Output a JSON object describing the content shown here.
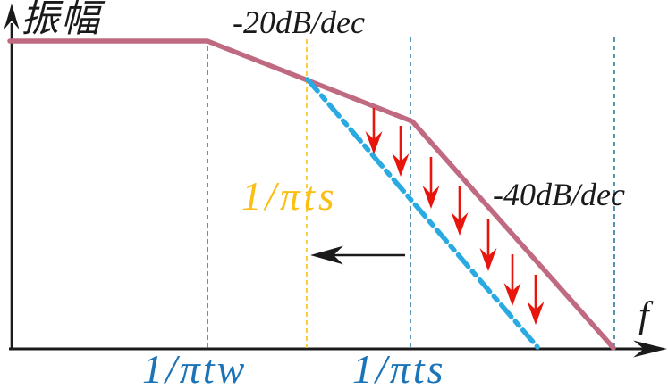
{
  "chart_data": {
    "type": "line",
    "title": "",
    "ylabel": "振幅",
    "xlabel": "f",
    "slope_labels": [
      "-20dB/dec",
      "-40dB/dec"
    ],
    "shifted_pole_label": "1/πts",
    "x_tick_labels": [
      "1/πtw",
      "1/πts"
    ],
    "axis_color": "#1a1a1a",
    "legend": "off",
    "grid": "off",
    "series": [
      {
        "name": "amplitude-asymptote-original",
        "color": "#c06a82",
        "width": 5.5,
        "dash": "",
        "points": [
          [
            11,
            46
          ],
          [
            232,
            46
          ],
          [
            461,
            136
          ],
          [
            686,
            390
          ]
        ]
      },
      {
        "name": "amplitude-asymptote-shifted",
        "color": "#29abe2",
        "width": 5.5,
        "dash": "17 7 6 7",
        "points": [
          [
            344,
            89
          ],
          [
            601,
            389
          ]
        ]
      }
    ],
    "guides": [
      {
        "name": "guide-line-1-pi-tw",
        "x": 232,
        "top": 52,
        "bottom": 390,
        "color": "#2e7ca0"
      },
      {
        "name": "guide-line-shifted-1-pi-ts",
        "x": 343,
        "top": 44,
        "bottom": 390,
        "color": "#fdc20e"
      },
      {
        "name": "guide-line-1-pi-ts",
        "x": 459,
        "top": 42,
        "bottom": 390,
        "color": "#2e7ca0"
      },
      {
        "name": "guide-line-crossover",
        "x": 687,
        "top": 42,
        "bottom": 390,
        "color": "#2e7ca0"
      }
    ],
    "drop_arrows": {
      "color": "#e8150d",
      "points": [
        {
          "x": 418,
          "top": 121,
          "tip": 173
        },
        {
          "x": 448,
          "top": 141,
          "tip": 198
        },
        {
          "x": 482,
          "top": 176,
          "tip": 234
        },
        {
          "x": 514,
          "top": 209,
          "tip": 264
        },
        {
          "x": 546,
          "top": 246,
          "tip": 304
        },
        {
          "x": 573,
          "top": 285,
          "tip": 343
        },
        {
          "x": 599,
          "top": 308,
          "tip": 364
        }
      ]
    },
    "shift_arrow": {
      "color": "#1a1a1a",
      "y": 286,
      "tail_x": 453,
      "tip_x": 347
    },
    "axes": {
      "x": {
        "y": 391,
        "start": 10,
        "end": 736,
        "tip": 746
      },
      "y": {
        "x": 13,
        "start": 392,
        "end": 26,
        "tip": 4
      }
    },
    "label_colors": {
      "break_labels": "#1b74b8",
      "shifted_label": "#fbbf14",
      "text": "#1a1a1a"
    }
  }
}
